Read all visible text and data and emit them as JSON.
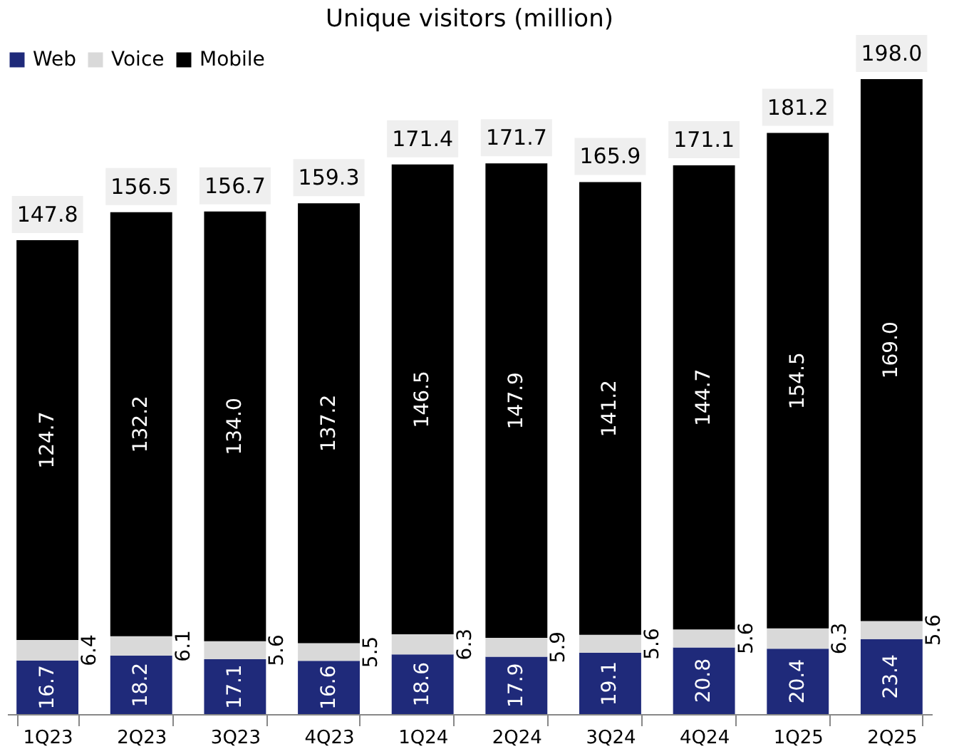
{
  "chart_data": {
    "type": "bar",
    "title": "Unique visitors (million)",
    "categories": [
      "1Q23",
      "2Q23",
      "3Q23",
      "4Q23",
      "1Q24",
      "2Q24",
      "3Q24",
      "4Q24",
      "1Q25",
      "2Q25"
    ],
    "stacked": true,
    "series": [
      {
        "name": "Web",
        "color": "#1f2a7a",
        "values": [
          16.7,
          18.2,
          17.1,
          16.6,
          18.6,
          17.9,
          19.1,
          20.8,
          20.4,
          23.4
        ],
        "value_labels": [
          "16.7",
          "18.2",
          "17.1",
          "16.6",
          "18.6",
          "17.9",
          "19.1",
          "20.8",
          "20.4",
          "23.4"
        ]
      },
      {
        "name": "Voice",
        "color": "#d9d9d9",
        "values": [
          6.4,
          6.1,
          5.6,
          5.5,
          6.3,
          5.9,
          5.6,
          5.6,
          6.3,
          5.6
        ],
        "value_labels": [
          "6.4",
          "6.1",
          "5.6",
          "5.5",
          "6.3",
          "5.9",
          "5.6",
          "5.6",
          "6.3",
          "5.6"
        ]
      },
      {
        "name": "Mobile",
        "color": "#000000",
        "values": [
          124.7,
          132.2,
          134.0,
          137.2,
          146.5,
          147.9,
          141.2,
          144.7,
          154.5,
          169.0
        ],
        "value_labels": [
          "124.7",
          "132.2",
          "134.0",
          "137.2",
          "146.5",
          "147.9",
          "141.2",
          "144.7",
          "154.5",
          "169.0"
        ]
      }
    ],
    "totals": [
      "147.8",
      "156.5",
      "156.7",
      "159.3",
      "171.4",
      "171.7",
      "165.9",
      "171.1",
      "181.2",
      "198.0"
    ],
    "legend": "top",
    "grid": false,
    "tick_labels": "x"
  }
}
